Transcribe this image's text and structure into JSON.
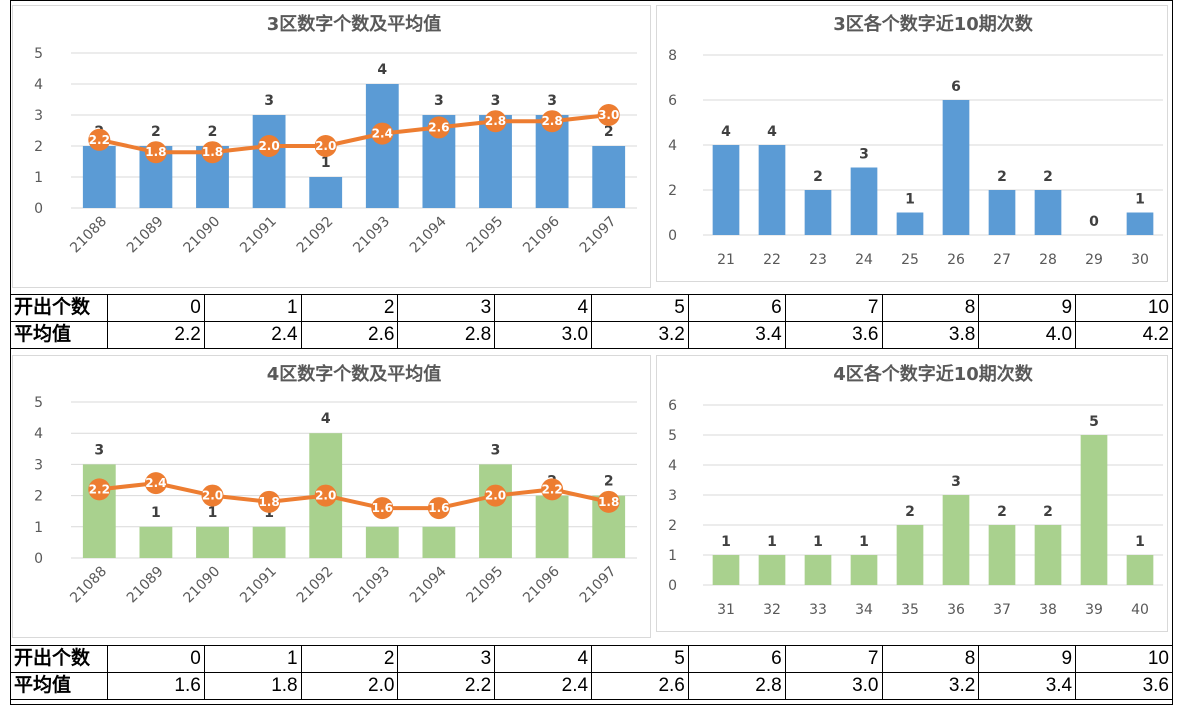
{
  "section3": {
    "left_chart": {
      "title": "3区数字个数及平均值",
      "type": "bar+line",
      "categories": [
        "21088",
        "21089",
        "21090",
        "21091",
        "21092",
        "21093",
        "21094",
        "21095",
        "21096",
        "21097"
      ],
      "bar_values": [
        2,
        2,
        2,
        3,
        1,
        4,
        3,
        3,
        3,
        2
      ],
      "line_values": [
        2.2,
        1.8,
        1.8,
        2.0,
        2.0,
        2.4,
        2.6,
        2.8,
        2.8,
        3.0
      ],
      "ylim": [
        0,
        5
      ],
      "yticks": [
        0,
        1,
        2,
        3,
        4,
        5
      ],
      "bar_color": "#5b9bd5",
      "line_color": "#ed7d31"
    },
    "right_chart": {
      "title": "3区各个数字近10期次数",
      "type": "bar",
      "categories": [
        "21",
        "22",
        "23",
        "24",
        "25",
        "26",
        "27",
        "28",
        "29",
        "30"
      ],
      "values": [
        4,
        4,
        2,
        3,
        1,
        6,
        2,
        2,
        0,
        1
      ],
      "ylim": [
        0,
        8
      ],
      "yticks": [
        0,
        2,
        4,
        6,
        8
      ],
      "bar_color": "#5b9bd5"
    },
    "table": {
      "row1_header": "开出个数",
      "row1": [
        "0",
        "1",
        "2",
        "3",
        "4",
        "5",
        "6",
        "7",
        "8",
        "9",
        "10"
      ],
      "row2_header": "平均值",
      "row2": [
        "2.2",
        "2.4",
        "2.6",
        "2.8",
        "3.0",
        "3.2",
        "3.4",
        "3.6",
        "3.8",
        "4.0",
        "4.2"
      ]
    }
  },
  "section4": {
    "left_chart": {
      "title": "4区数字个数及平均值",
      "type": "bar+line",
      "categories": [
        "21088",
        "21089",
        "21090",
        "21091",
        "21092",
        "21093",
        "21094",
        "21095",
        "21096",
        "21097"
      ],
      "bar_values": [
        3,
        1,
        1,
        1,
        4,
        1,
        1,
        3,
        2,
        2
      ],
      "line_values": [
        2.2,
        2.4,
        2.0,
        1.8,
        2.0,
        1.6,
        1.6,
        2.0,
        2.2,
        1.8
      ],
      "ylim": [
        0,
        5
      ],
      "yticks": [
        0,
        1,
        2,
        3,
        4,
        5
      ],
      "bar_color": "#a9d18e",
      "line_color": "#ed7d31"
    },
    "right_chart": {
      "title": "4区各个数字近10期次数",
      "type": "bar",
      "categories": [
        "31",
        "32",
        "33",
        "34",
        "35",
        "36",
        "37",
        "38",
        "39",
        "40"
      ],
      "values": [
        1,
        1,
        1,
        1,
        2,
        3,
        2,
        2,
        5,
        1
      ],
      "ylim": [
        0,
        6
      ],
      "yticks": [
        0,
        1,
        2,
        3,
        4,
        5,
        6
      ],
      "bar_color": "#a9d18e"
    },
    "table": {
      "row1_header": "开出个数",
      "row1": [
        "0",
        "1",
        "2",
        "3",
        "4",
        "5",
        "6",
        "7",
        "8",
        "9",
        "10"
      ],
      "row2_header": "平均值",
      "row2": [
        "1.6",
        "1.8",
        "2.0",
        "2.2",
        "2.4",
        "2.6",
        "2.8",
        "3.0",
        "3.2",
        "3.4",
        "3.6"
      ]
    }
  }
}
